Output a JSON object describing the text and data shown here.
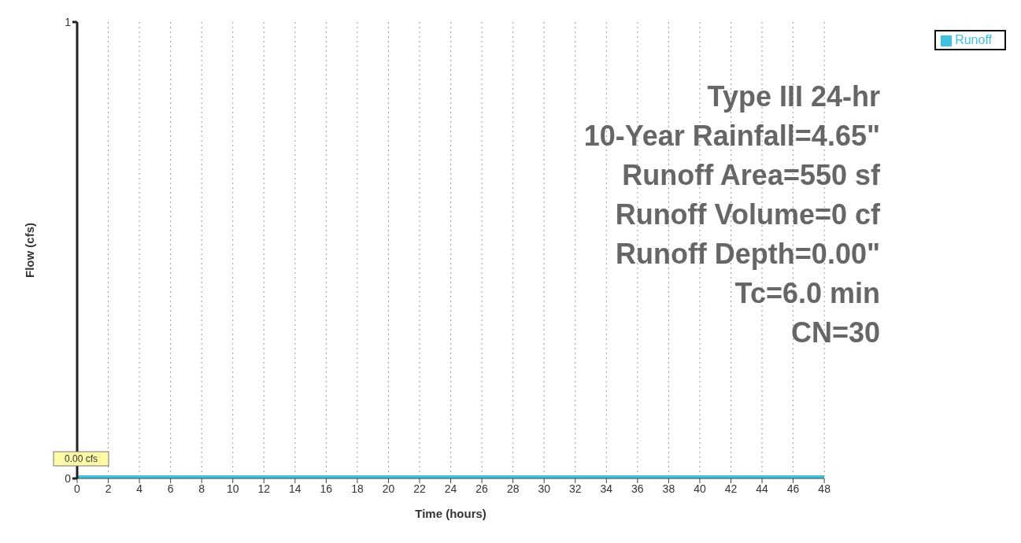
{
  "chart_data": {
    "type": "line",
    "xlabel": "Time (hours)",
    "ylabel": "Flow (cfs)",
    "x": [
      0,
      48
    ],
    "series": [
      {
        "name": "Runoff",
        "color": "#3fc1e0",
        "values": [
          0,
          0
        ],
        "value_labels": [
          "0.00 cfs",
          null
        ]
      }
    ],
    "xlim": [
      0,
      48
    ],
    "xticks": [
      0,
      2,
      4,
      6,
      8,
      10,
      12,
      14,
      16,
      18,
      20,
      22,
      24,
      26,
      28,
      30,
      32,
      34,
      36,
      38,
      40,
      42,
      44,
      46,
      48
    ],
    "ylim": [
      0,
      1
    ],
    "yticks": [
      0,
      1
    ],
    "grid": "x",
    "legend": "top right",
    "annotations": [
      "Type III 24-hr",
      "10-Year Rainfall=4.65\"",
      "Runoff Area=550 sf",
      "Runoff Volume=0 cf",
      "Runoff Depth=0.00\"",
      "Tc=6.0 min",
      "CN=30"
    ]
  }
}
